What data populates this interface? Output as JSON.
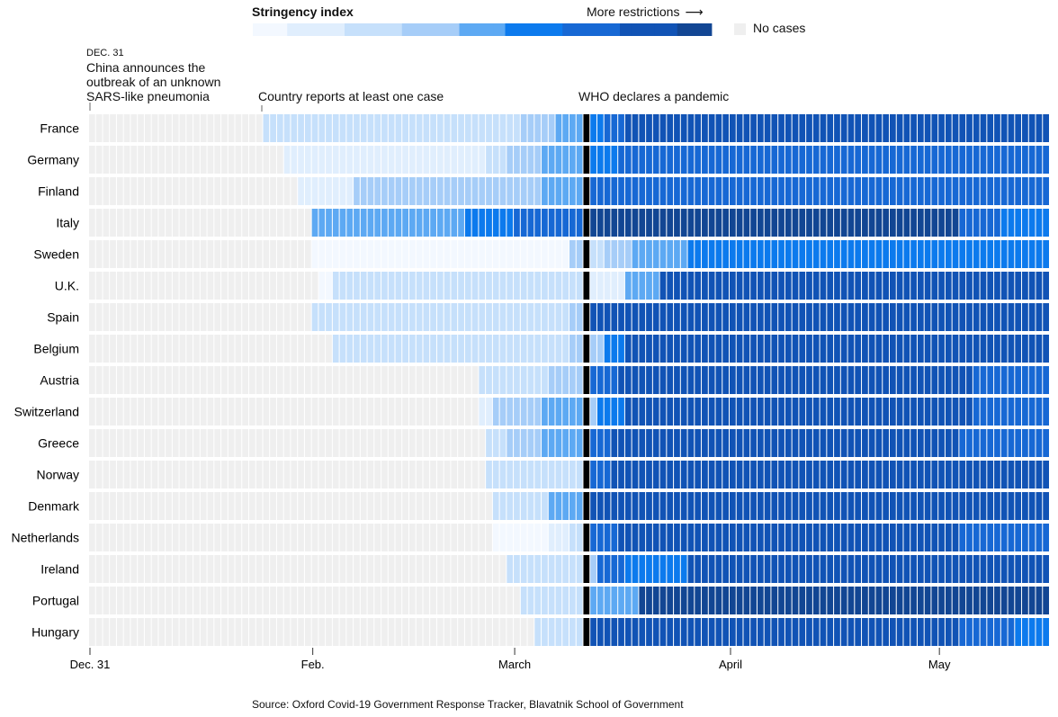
{
  "legend": {
    "title": "Stringency index",
    "more": "More restrictions",
    "arrow": "⟶",
    "no_cases": "No cases",
    "no_cases_color": "#efefef"
  },
  "annotations": {
    "dec31_label": "DEC. 31",
    "dec31_text": "China announces the outbreak of an unknown SARS-like pneumonia",
    "case_text": "Country reports at least one case",
    "who_text": "WHO declares a pandemic"
  },
  "source": "Source: Oxford Covid-19 Government Response Tracker, Blavatnik School of Government",
  "chart_data": {
    "type": "heatmap",
    "title": "Stringency index",
    "x_start": "2019-12-31",
    "days": 138,
    "x_ticks": [
      {
        "label": "Dec. 31",
        "day": 0
      },
      {
        "label": "Feb.",
        "day": 32
      },
      {
        "label": "March",
        "day": 61
      },
      {
        "label": "April",
        "day": 92
      },
      {
        "label": "May",
        "day": 122
      }
    ],
    "who_pandemic_day": 71,
    "color_scale": {
      "no_cases": "#efefef",
      "stops": [
        "#f3f8ff",
        "#e0eefd",
        "#c6e0fb",
        "#a6cdf8",
        "#5da9f3",
        "#0c7aed",
        "#1768d4",
        "#1153b5",
        "#124693"
      ]
    },
    "countries": [
      {
        "name": "France",
        "first_case": 25,
        "segments": [
          [
            25,
            2
          ],
          [
            62,
            3
          ],
          [
            67,
            4
          ],
          [
            72,
            5
          ],
          [
            74,
            6
          ],
          [
            77,
            7
          ]
        ]
      },
      {
        "name": "Germany",
        "first_case": 28,
        "segments": [
          [
            28,
            1
          ],
          [
            57,
            2
          ],
          [
            60,
            3
          ],
          [
            65,
            4
          ],
          [
            72,
            5
          ],
          [
            76,
            6
          ]
        ]
      },
      {
        "name": "Finland",
        "first_case": 30,
        "segments": [
          [
            30,
            1
          ],
          [
            38,
            3
          ],
          [
            65,
            4
          ],
          [
            72,
            6
          ]
        ]
      },
      {
        "name": "Italy",
        "first_case": 32,
        "segments": [
          [
            32,
            4
          ],
          [
            54,
            5
          ],
          [
            61,
            6
          ],
          [
            71,
            8
          ],
          [
            125,
            6
          ],
          [
            131,
            5
          ]
        ]
      },
      {
        "name": "Sweden",
        "first_case": 32,
        "segments": [
          [
            32,
            0
          ],
          [
            69,
            3
          ],
          [
            72,
            2
          ],
          [
            74,
            3
          ],
          [
            78,
            4
          ],
          [
            86,
            5
          ]
        ]
      },
      {
        "name": "U.K.",
        "first_case": 33,
        "segments": [
          [
            33,
            0
          ],
          [
            35,
            2
          ],
          [
            72,
            1
          ],
          [
            77,
            4
          ],
          [
            82,
            7
          ]
        ]
      },
      {
        "name": "Spain",
        "first_case": 32,
        "segments": [
          [
            32,
            2
          ],
          [
            69,
            3
          ],
          [
            72,
            7
          ]
        ]
      },
      {
        "name": "Belgium",
        "first_case": 35,
        "segments": [
          [
            35,
            2
          ],
          [
            69,
            3
          ],
          [
            72,
            3
          ],
          [
            74,
            5
          ],
          [
            77,
            7
          ]
        ]
      },
      {
        "name": "Austria",
        "first_case": 56,
        "segments": [
          [
            56,
            2
          ],
          [
            66,
            3
          ],
          [
            72,
            6
          ],
          [
            76,
            7
          ],
          [
            127,
            6
          ]
        ]
      },
      {
        "name": "Switzerland",
        "first_case": 56,
        "segments": [
          [
            56,
            1
          ],
          [
            58,
            3
          ],
          [
            65,
            4
          ],
          [
            72,
            3
          ],
          [
            73,
            5
          ],
          [
            77,
            7
          ],
          [
            127,
            6
          ]
        ]
      },
      {
        "name": "Greece",
        "first_case": 57,
        "segments": [
          [
            57,
            2
          ],
          [
            60,
            3
          ],
          [
            65,
            4
          ],
          [
            72,
            6
          ],
          [
            75,
            7
          ],
          [
            125,
            6
          ]
        ]
      },
      {
        "name": "Norway",
        "first_case": 57,
        "segments": [
          [
            57,
            2
          ],
          [
            72,
            6
          ],
          [
            75,
            7
          ]
        ]
      },
      {
        "name": "Denmark",
        "first_case": 58,
        "segments": [
          [
            58,
            2
          ],
          [
            66,
            4
          ],
          [
            72,
            7
          ]
        ]
      },
      {
        "name": "Netherlands",
        "first_case": 58,
        "segments": [
          [
            58,
            0
          ],
          [
            66,
            1
          ],
          [
            69,
            2
          ],
          [
            72,
            6
          ],
          [
            76,
            7
          ],
          [
            125,
            6
          ]
        ]
      },
      {
        "name": "Ireland",
        "first_case": 60,
        "segments": [
          [
            60,
            2
          ],
          [
            72,
            3
          ],
          [
            73,
            6
          ],
          [
            77,
            5
          ],
          [
            86,
            7
          ]
        ]
      },
      {
        "name": "Portugal",
        "first_case": 62,
        "segments": [
          [
            62,
            2
          ],
          [
            72,
            4
          ],
          [
            79,
            8
          ]
        ]
      },
      {
        "name": "Hungary",
        "first_case": 64,
        "segments": [
          [
            64,
            2
          ],
          [
            72,
            7
          ],
          [
            125,
            6
          ],
          [
            133,
            5
          ]
        ]
      }
    ]
  }
}
